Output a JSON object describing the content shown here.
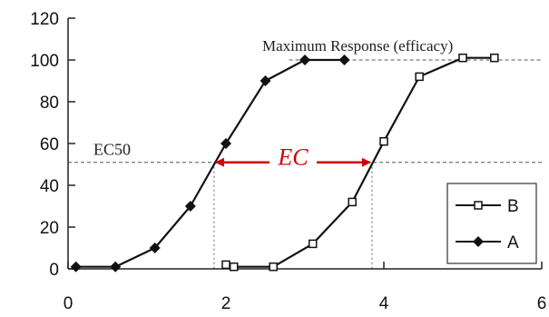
{
  "chart_data": {
    "type": "line",
    "xlim": [
      0,
      6
    ],
    "ylim": [
      0,
      120
    ],
    "x_ticks": [
      0,
      2,
      4,
      6
    ],
    "y_ticks": [
      0,
      20,
      40,
      60,
      80,
      100,
      120
    ],
    "x_tick_labels": [
      "0",
      "2",
      "4",
      "6"
    ],
    "y_tick_labels": [
      "0",
      "20",
      "40",
      "60",
      "80",
      "100",
      "120"
    ],
    "grid": false,
    "legend_position": "right",
    "series": [
      {
        "name": "B",
        "marker": "open-square",
        "color": "#111111",
        "x": [
          2.0,
          2.1,
          2.6,
          3.1,
          3.6,
          4.0,
          4.45,
          5.0,
          5.4
        ],
        "y": [
          2,
          1,
          1,
          12,
          32,
          61,
          92,
          101,
          101
        ]
      },
      {
        "name": "A",
        "marker": "filled-diamond",
        "color": "#111111",
        "x": [
          0.1,
          0.6,
          1.1,
          1.55,
          2.0,
          2.5,
          3.0,
          3.5
        ],
        "y": [
          1,
          1,
          10,
          30,
          60,
          90,
          100,
          100
        ]
      }
    ],
    "annotations": {
      "max_response": {
        "text": "Maximum Response (efficacy)",
        "y": 100,
        "x_from": 2.8,
        "x_to": 6.0
      },
      "ec50": {
        "text": "EC50",
        "y": 51,
        "x_from": 0.0,
        "x_to": 6.0
      },
      "ec_arrow": {
        "text": "EC",
        "x_from": 1.85,
        "x_to": 3.85,
        "y": 51,
        "color": "#d10000"
      },
      "drop_lines": [
        1.85,
        3.85
      ]
    }
  }
}
